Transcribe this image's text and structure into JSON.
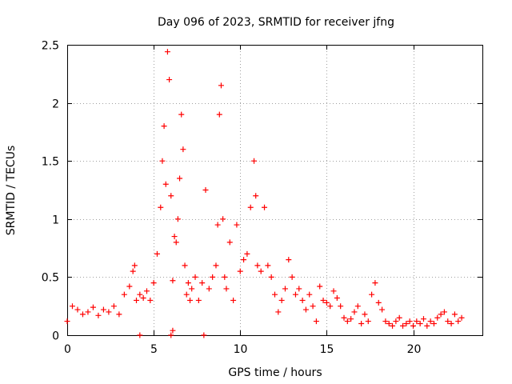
{
  "chart_data": {
    "type": "scatter",
    "title": "Day 096 of 2023, SRMTID for receiver jfng",
    "xlabel": "GPS time / hours",
    "ylabel": "SRMTID / TECUs",
    "xlim": [
      0,
      24
    ],
    "ylim": [
      0,
      2.5
    ],
    "x_ticks": [
      0,
      5,
      10,
      15,
      20
    ],
    "x_tick_labels": [
      "0",
      "5",
      "10",
      "15",
      "20"
    ],
    "y_ticks": [
      0,
      0.5,
      1,
      1.5,
      2,
      2.5
    ],
    "y_tick_labels": [
      "0",
      "0.5",
      "1",
      "1.5",
      "2",
      "2.5"
    ],
    "grid": true,
    "marker": "+",
    "series": [
      {
        "name": "SRMTID",
        "color": "#ff0000",
        "x": [
          0.0,
          0.3,
          0.6,
          0.9,
          1.2,
          1.5,
          1.8,
          2.1,
          2.4,
          2.7,
          3.0,
          3.3,
          3.6,
          3.8,
          3.9,
          4.0,
          4.2,
          4.4,
          4.6,
          4.8,
          5.0,
          5.2,
          5.4,
          5.5,
          5.6,
          5.7,
          5.8,
          5.9,
          6.0,
          6.1,
          6.2,
          6.3,
          6.4,
          6.5,
          6.6,
          6.7,
          6.8,
          6.9,
          7.0,
          7.1,
          7.2,
          7.4,
          7.6,
          7.8,
          8.0,
          8.2,
          8.4,
          8.6,
          8.7,
          8.8,
          8.9,
          9.0,
          9.1,
          9.2,
          9.4,
          9.6,
          9.8,
          10.0,
          10.2,
          10.4,
          10.6,
          10.8,
          10.9,
          11.0,
          11.2,
          11.4,
          11.6,
          11.8,
          12.0,
          12.2,
          12.4,
          12.6,
          12.8,
          13.0,
          13.2,
          13.4,
          13.6,
          13.8,
          14.0,
          14.2,
          14.4,
          14.6,
          14.8,
          15.0,
          15.2,
          15.4,
          15.6,
          15.8,
          16.0,
          16.2,
          16.4,
          16.6,
          16.8,
          17.0,
          17.2,
          17.4,
          17.6,
          17.8,
          18.0,
          18.2,
          18.4,
          18.6,
          18.8,
          19.0,
          19.2,
          19.4,
          19.6,
          19.8,
          20.0,
          20.2,
          20.4,
          20.6,
          20.8,
          21.0,
          21.2,
          21.4,
          21.6,
          21.8,
          22.0,
          22.2,
          22.4,
          22.6,
          22.8,
          4.2,
          6.0,
          6.1,
          7.9
        ],
        "y": [
          0.12,
          0.25,
          0.22,
          0.18,
          0.2,
          0.24,
          0.17,
          0.22,
          0.2,
          0.25,
          0.18,
          0.35,
          0.42,
          0.55,
          0.6,
          0.3,
          0.35,
          0.32,
          0.38,
          0.3,
          0.45,
          0.7,
          1.1,
          1.5,
          1.8,
          1.3,
          2.44,
          2.2,
          1.2,
          0.47,
          0.85,
          0.8,
          1.0,
          1.35,
          1.9,
          1.6,
          0.6,
          0.35,
          0.45,
          0.3,
          0.4,
          0.5,
          0.3,
          0.45,
          1.25,
          0.4,
          0.5,
          0.6,
          0.95,
          1.9,
          2.15,
          1.0,
          0.5,
          0.4,
          0.8,
          0.3,
          0.95,
          0.55,
          0.65,
          0.7,
          1.1,
          1.5,
          1.2,
          0.6,
          0.55,
          1.1,
          0.6,
          0.5,
          0.35,
          0.2,
          0.3,
          0.4,
          0.65,
          0.5,
          0.35,
          0.4,
          0.3,
          0.22,
          0.35,
          0.25,
          0.12,
          0.42,
          0.3,
          0.28,
          0.25,
          0.38,
          0.32,
          0.25,
          0.15,
          0.12,
          0.14,
          0.2,
          0.25,
          0.1,
          0.18,
          0.12,
          0.35,
          0.45,
          0.28,
          0.22,
          0.12,
          0.1,
          0.08,
          0.12,
          0.15,
          0.08,
          0.1,
          0.12,
          0.08,
          0.12,
          0.1,
          0.14,
          0.08,
          0.12,
          0.1,
          0.15,
          0.18,
          0.2,
          0.12,
          0.1,
          0.18,
          0.12,
          0.15,
          0.0,
          0.0,
          0.04,
          0.0
        ]
      }
    ]
  }
}
